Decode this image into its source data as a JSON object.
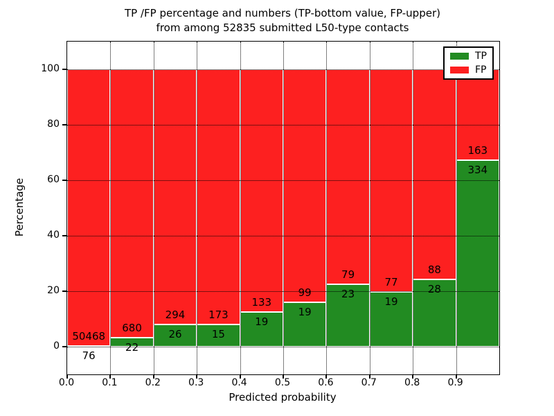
{
  "figure": {
    "title_line1": "TP /FP percentage and numbers (TP-bottom value, FP-upper)",
    "title_line2": "from among 52835 submitted L50-type contacts",
    "xlabel": "Predicted probability",
    "ylabel": "Percentage"
  },
  "legend": {
    "items": [
      {
        "label": "TP",
        "color": "#228b22"
      },
      {
        "label": "FP",
        "color": "#fd2020"
      }
    ]
  },
  "chart_data": {
    "type": "bar",
    "stacked": true,
    "normalized_to_percent": true,
    "title": "TP /FP percentage and numbers (TP-bottom value, FP-upper) from among 52835 submitted L50-type contacts",
    "xlabel": "Predicted probability",
    "ylabel": "Percentage",
    "xlim": [
      0.0,
      1.0
    ],
    "ylim": [
      -10,
      110
    ],
    "grid": "dotted-black-over-bars",
    "legend_position": "upper right",
    "bin_width": 0.1,
    "categories": [
      "0.0-0.1",
      "0.1-0.2",
      "0.2-0.3",
      "0.3-0.4",
      "0.4-0.5",
      "0.5-0.6",
      "0.6-0.7",
      "0.7-0.8",
      "0.8-0.9",
      "0.9-1.0"
    ],
    "x_tick_labels": [
      "0.0",
      "0.1",
      "0.2",
      "0.3",
      "0.4",
      "0.5",
      "0.6",
      "0.7",
      "0.8",
      "0.9"
    ],
    "y_tick_labels": [
      "0",
      "20",
      "40",
      "60",
      "80",
      "100"
    ],
    "y_tick_values": [
      0,
      20,
      40,
      60,
      80,
      100
    ],
    "series": [
      {
        "name": "TP",
        "color": "#228b22",
        "counts": [
          76,
          22,
          26,
          15,
          19,
          19,
          23,
          19,
          28,
          334
        ]
      },
      {
        "name": "FP",
        "color": "#fd2020",
        "counts": [
          50468,
          680,
          294,
          173,
          133,
          99,
          79,
          77,
          88,
          163
        ]
      }
    ],
    "tp_percent_of_bin": [
      0.15,
      3.13,
      8.13,
      7.98,
      12.5,
      16.1,
      22.55,
      19.79,
      24.14,
      67.2
    ],
    "total_submitted": 52835
  }
}
